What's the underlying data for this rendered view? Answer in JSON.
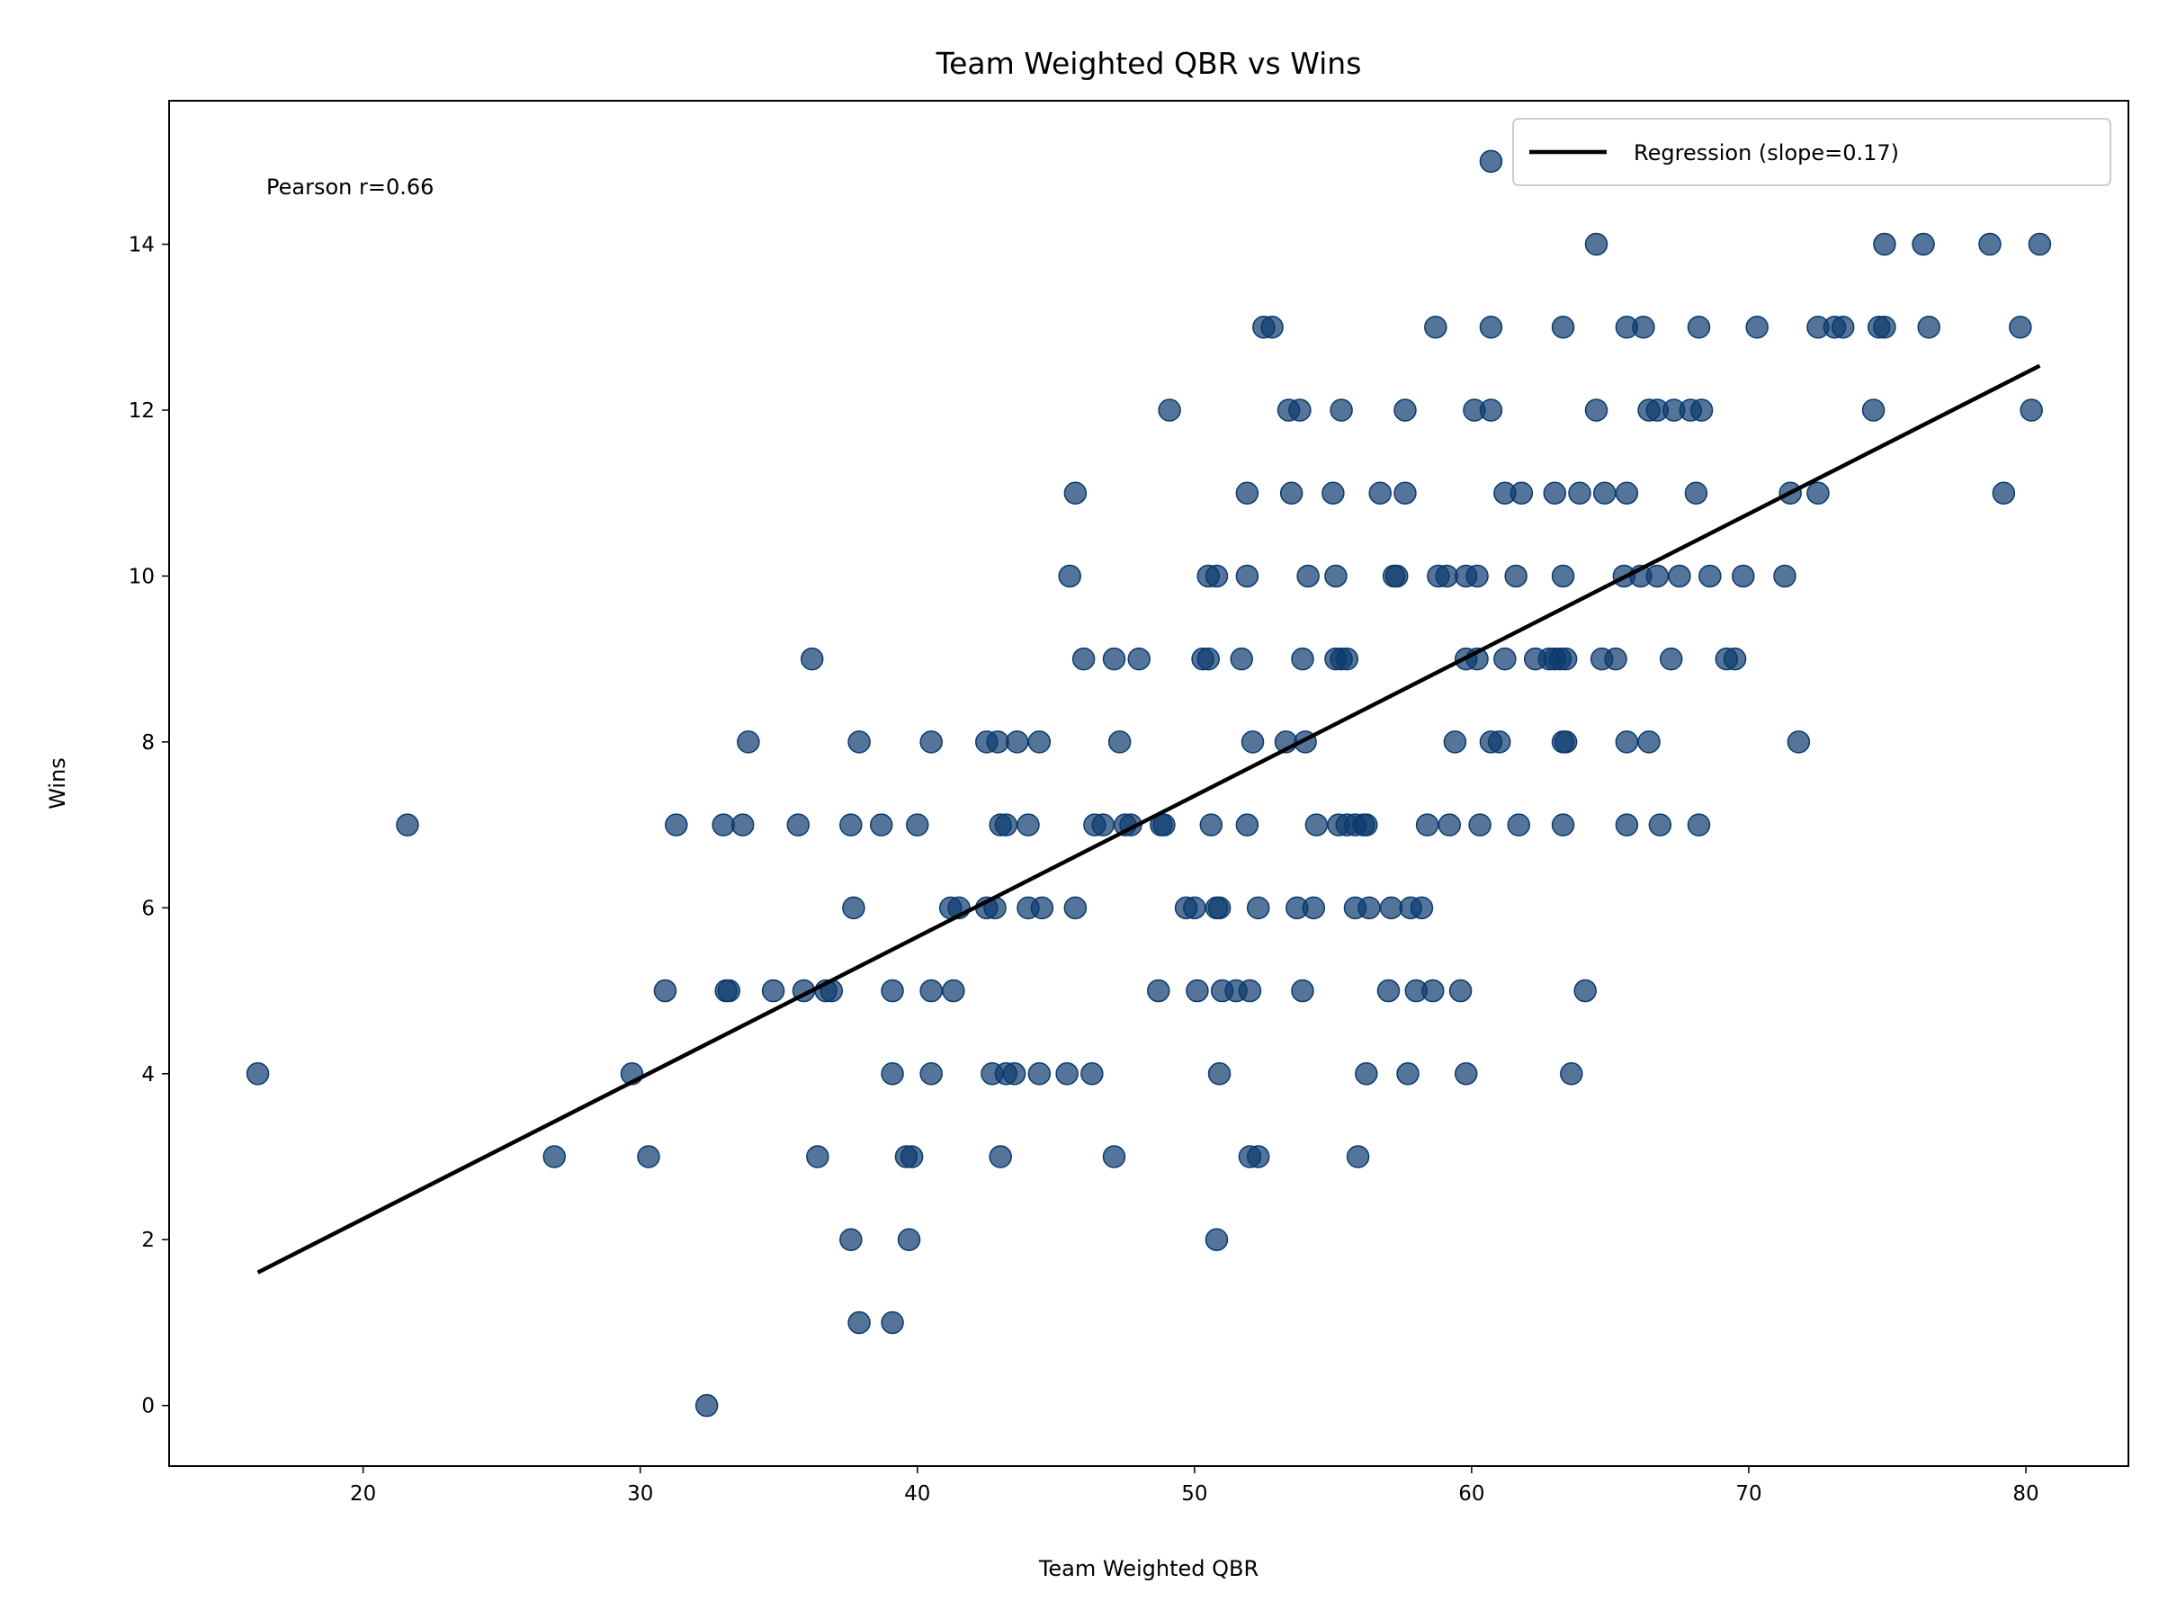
{
  "chart_data": {
    "type": "scatter",
    "title": "Team Weighted QBR vs Wins",
    "xlabel": "Team Weighted QBR",
    "ylabel": "Wins",
    "xlim": [
      13.0,
      83.7
    ],
    "ylim": [
      -0.73,
      15.73
    ],
    "xticks": [
      20,
      30,
      40,
      50,
      60,
      70,
      80
    ],
    "yticks": [
      0,
      2,
      4,
      6,
      8,
      10,
      12,
      14
    ],
    "grid": false,
    "legend_position": "top-right",
    "annotation": "Pearson r=0.66",
    "point_color": "#0b3a6e",
    "regression": {
      "name": "Regression (slope=0.17)",
      "slope": 0.17,
      "intercept": -1.15,
      "x_range": [
        16.2,
        80.5
      ],
      "color": "#000000"
    },
    "points_by_wins": {
      "15": [
        60.7
      ],
      "14": [
        64.5,
        74.9,
        76.3,
        78.7,
        80.5
      ],
      "13": [
        52.5,
        52.8,
        58.7,
        60.7,
        63.3,
        65.6,
        66.2,
        68.2,
        70.3,
        72.5,
        73.1,
        73.4,
        74.7,
        74.9,
        76.5,
        79.8
      ],
      "12": [
        49.1,
        53.4,
        53.8,
        55.3,
        57.6,
        60.1,
        60.7,
        64.5,
        66.4,
        66.7,
        67.3,
        67.9,
        68.3,
        74.5,
        80.2
      ],
      "11": [
        45.7,
        51.9,
        53.5,
        55.0,
        56.7,
        57.6,
        61.2,
        61.8,
        63.0,
        63.9,
        64.8,
        65.6,
        68.1,
        71.5,
        72.5,
        79.2
      ],
      "10": [
        45.5,
        50.5,
        50.8,
        51.9,
        54.1,
        55.1,
        57.2,
        57.3,
        58.8,
        59.1,
        59.8,
        60.2,
        61.6,
        63.3,
        65.5,
        66.1,
        66.7,
        67.5,
        68.6,
        69.8,
        71.3
      ],
      "9": [
        36.2,
        46.0,
        47.1,
        48.0,
        50.3,
        50.5,
        51.7,
        53.9,
        55.1,
        55.3,
        55.5,
        59.8,
        60.2,
        61.2,
        62.3,
        62.8,
        63.0,
        63.2,
        63.4,
        64.7,
        65.2,
        67.2,
        69.2,
        69.5
      ],
      "8": [
        33.9,
        37.9,
        40.5,
        42.5,
        42.9,
        43.6,
        44.4,
        47.3,
        52.1,
        53.3,
        54.0,
        59.4,
        60.7,
        61.0,
        63.3,
        63.4,
        65.6,
        66.4,
        71.8
      ],
      "7": [
        21.6,
        31.3,
        33.0,
        33.7,
        35.7,
        37.6,
        38.7,
        40.0,
        43.0,
        43.2,
        44.0,
        46.4,
        46.7,
        47.5,
        47.7,
        48.8,
        48.9,
        50.6,
        51.9,
        54.4,
        55.2,
        55.5,
        55.8,
        56.1,
        56.2,
        58.4,
        59.2,
        60.3,
        61.7,
        63.3,
        65.6,
        66.8,
        68.2
      ],
      "6": [
        37.7,
        41.2,
        41.5,
        42.5,
        42.8,
        44.0,
        44.5,
        45.7,
        49.7,
        50.0,
        50.8,
        50.9,
        52.3,
        53.7,
        54.3,
        55.8,
        56.3,
        57.1,
        57.8,
        58.2
      ],
      "5": [
        30.9,
        33.1,
        33.2,
        34.8,
        35.9,
        36.7,
        36.9,
        39.1,
        40.5,
        41.3,
        48.7,
        50.1,
        51.0,
        51.5,
        52.0,
        53.9,
        57.0,
        58.0,
        58.6,
        59.6,
        64.1
      ],
      "4": [
        16.2,
        29.7,
        39.1,
        40.5,
        42.7,
        43.2,
        43.5,
        44.4,
        45.4,
        46.3,
        50.9,
        56.2,
        57.7,
        59.8,
        63.6
      ],
      "3": [
        26.9,
        30.3,
        36.4,
        39.6,
        39.8,
        43.0,
        47.1,
        52.0,
        52.3,
        55.9
      ],
      "2": [
        37.6,
        39.7,
        50.8
      ],
      "1": [
        37.9,
        39.1
      ],
      "0": [
        32.4
      ]
    }
  }
}
